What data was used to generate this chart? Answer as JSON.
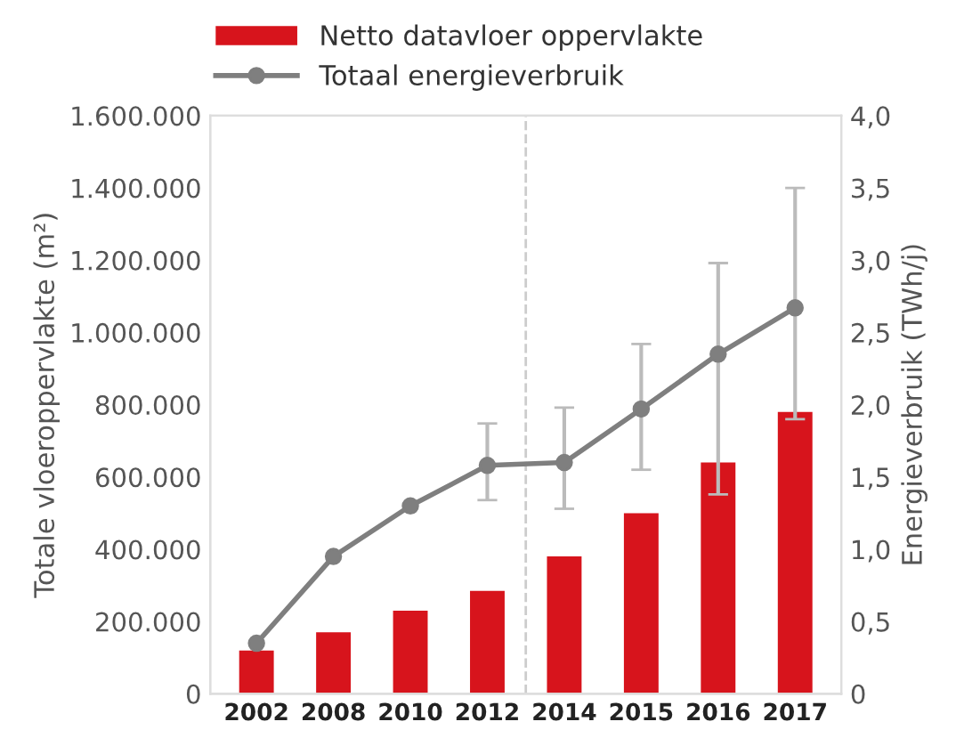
{
  "chart_data": {
    "type": "bar",
    "categories": [
      "2002",
      "2008",
      "2010",
      "2012",
      "2014",
      "2015",
      "2016",
      "2017"
    ],
    "ylabel": "Totale vloeroppervlakte (m²)",
    "y2label": "Energieverbruik (TWh/j)",
    "series": [
      {
        "name": "Netto datavloer oppervlakte",
        "color": "#d7141c",
        "values": [
          120000,
          170000,
          230000,
          285000,
          380000,
          500000,
          640000,
          780000
        ]
      },
      {
        "name": "Totaal energieverbruik",
        "type": "line",
        "axis": "y2",
        "color": "#7f7f7f",
        "marker": "circle",
        "values": [
          0.35,
          0.95,
          1.3,
          1.58,
          1.6,
          1.97,
          2.35,
          2.67
        ],
        "errors": [
          null,
          null,
          null,
          [
            1.34,
            1.87
          ],
          [
            1.28,
            1.98
          ],
          [
            1.55,
            2.42
          ],
          [
            1.38,
            2.98
          ],
          [
            1.9,
            3.5
          ]
        ]
      }
    ],
    "ylim": [
      0,
      1600000
    ],
    "yticks": [
      0,
      {
        "value": 200000,
        "label": "200.000"
      },
      {
        "value": 400000,
        "label": "400.000"
      },
      {
        "value": 600000,
        "label": "600.000"
      },
      {
        "value": 800000,
        "label": "800.000"
      },
      {
        "value": 1000000,
        "label": "1.000.000"
      },
      {
        "value": 1200000,
        "label": "1.200.000"
      },
      {
        "value": 1400000,
        "label": "1.400.000"
      },
      {
        "value": 1600000,
        "label": "1.600.000"
      }
    ],
    "y2lim": [
      0,
      4
    ],
    "y2ticks": [
      0,
      {
        "value": 0.5,
        "label": "0,5"
      },
      {
        "value": 1,
        "label": "1,0"
      },
      {
        "value": 1.5,
        "label": "1,5"
      },
      {
        "value": 2,
        "label": "2,0"
      },
      {
        "value": 2.5,
        "label": "2,5"
      },
      {
        "value": 3,
        "label": "3,0"
      },
      {
        "value": 3.5,
        "label": "3,5"
      },
      {
        "value": 4,
        "label": "4,0"
      }
    ],
    "legend": "top left",
    "grid": false
  }
}
